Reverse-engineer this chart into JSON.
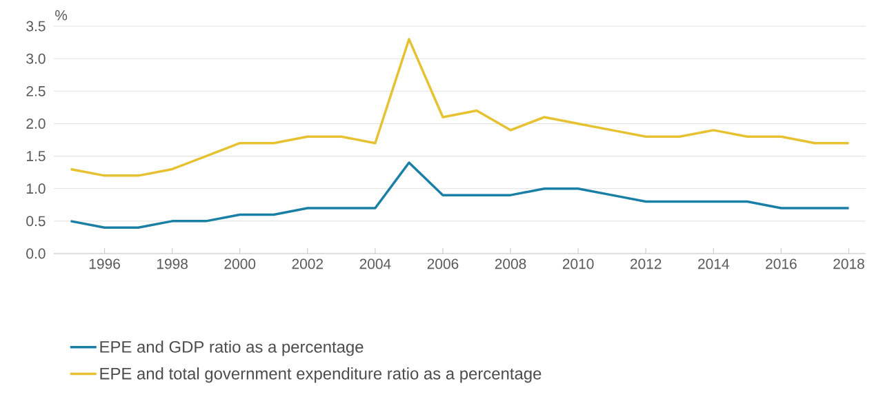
{
  "chart_data": {
    "type": "line",
    "ylabel": "%",
    "x": [
      1995,
      1996,
      1997,
      1998,
      1999,
      2000,
      2001,
      2002,
      2003,
      2004,
      2005,
      2006,
      2007,
      2008,
      2009,
      2010,
      2011,
      2012,
      2013,
      2014,
      2015,
      2016,
      2017,
      2018
    ],
    "series": [
      {
        "name": "EPE and GDP ratio as a percentage",
        "color": "#1a7fa5",
        "values": [
          0.5,
          0.4,
          0.4,
          0.5,
          0.5,
          0.6,
          0.6,
          0.7,
          0.7,
          0.7,
          1.4,
          0.9,
          0.9,
          0.9,
          1.0,
          1.0,
          0.9,
          0.8,
          0.8,
          0.8,
          0.8,
          0.7,
          0.7,
          0.7
        ]
      },
      {
        "name": "EPE and total government expenditure ratio as a percentage",
        "color": "#e6c232",
        "values": [
          1.3,
          1.2,
          1.2,
          1.3,
          1.5,
          1.7,
          1.7,
          1.8,
          1.8,
          1.7,
          3.3,
          2.1,
          2.2,
          1.9,
          2.1,
          2.0,
          1.9,
          1.8,
          1.8,
          1.9,
          1.8,
          1.8,
          1.7,
          1.7
        ]
      }
    ],
    "xlim": [
      1994.5,
      2018.5
    ],
    "xticks": [
      1996,
      1998,
      2000,
      2002,
      2004,
      2006,
      2008,
      2010,
      2012,
      2014,
      2016,
      2018
    ],
    "ylim": [
      0,
      3.5
    ],
    "yticks": [
      {
        "value": 0,
        "label": "0.0"
      },
      0.5,
      {
        "value": 1,
        "label": "1.0"
      },
      1.5,
      {
        "value": 2,
        "label": "2.0"
      },
      2.5,
      {
        "value": 3,
        "label": "3.0"
      },
      3.5
    ],
    "grid": "y",
    "legend": "bottom",
    "marker": "none",
    "line_style": "solid"
  }
}
